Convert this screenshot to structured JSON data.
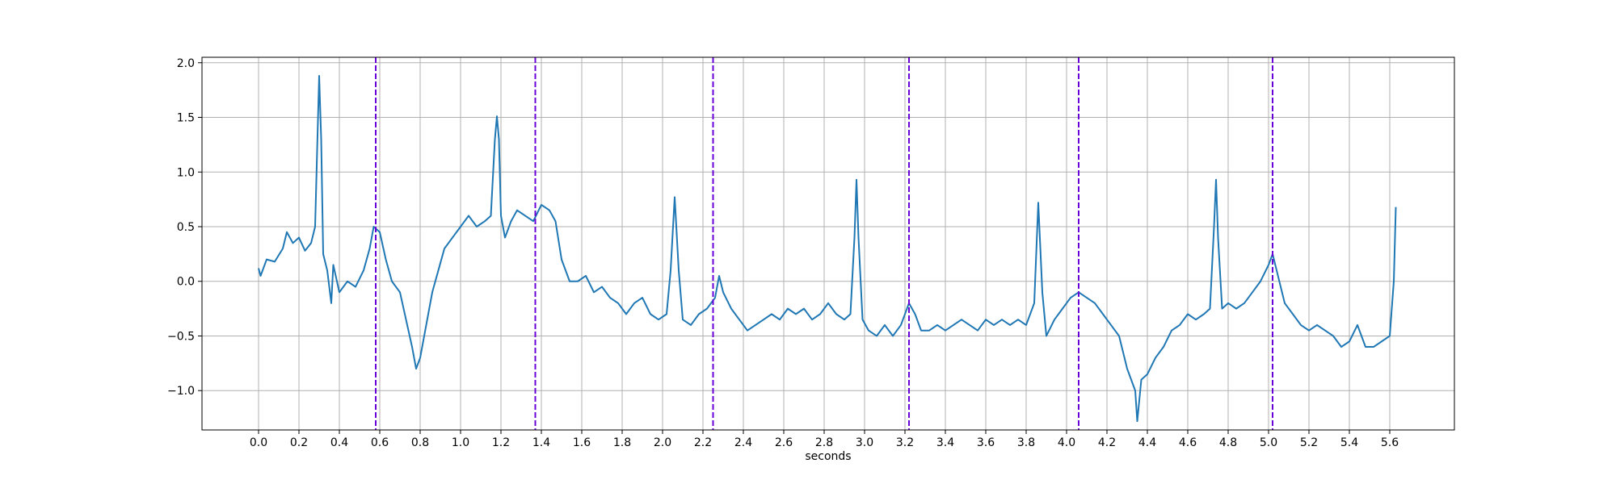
{
  "chart_data": {
    "type": "line",
    "xlabel": "seconds",
    "xlim": [
      -0.28,
      5.92
    ],
    "ylim": [
      -1.36,
      2.05
    ],
    "xticks": [
      {
        "value": 0,
        "label": "0.0"
      },
      0.2,
      0.4,
      0.6,
      0.8,
      {
        "value": 1,
        "label": "1.0"
      },
      1.2,
      1.4,
      1.6,
      1.8,
      {
        "value": 2,
        "label": "2.0"
      },
      2.2,
      2.4,
      2.6,
      2.8,
      {
        "value": 3,
        "label": "3.0"
      },
      3.2,
      3.4,
      3.6,
      3.8,
      {
        "value": 4,
        "label": "4.0"
      },
      4.2,
      4.4,
      4.6,
      4.8,
      {
        "value": 5,
        "label": "5.0"
      },
      5.2,
      5.4,
      5.6
    ],
    "yticks": [
      {
        "value": -1,
        "label": "−1.0"
      },
      {
        "value": -0.5,
        "label": "−0.5"
      },
      {
        "value": 0,
        "label": "0.0"
      },
      0.5,
      {
        "value": 1,
        "label": "1.0"
      },
      1.5,
      {
        "value": 2,
        "label": "2.0"
      }
    ],
    "grid": true,
    "vlines": [
      0.58,
      1.37,
      2.25,
      3.22,
      4.06,
      5.02
    ],
    "vline_color": "#6a00d8",
    "series": [
      {
        "color": "#1f77b4",
        "x": [
          0.0,
          0.01,
          0.04,
          0.08,
          0.12,
          0.14,
          0.17,
          0.2,
          0.23,
          0.26,
          0.28,
          0.29,
          0.3,
          0.31,
          0.32,
          0.34,
          0.36,
          0.37,
          0.4,
          0.44,
          0.48,
          0.52,
          0.55,
          0.57,
          0.6,
          0.63,
          0.66,
          0.7,
          0.73,
          0.76,
          0.78,
          0.8,
          0.83,
          0.86,
          0.89,
          0.92,
          0.96,
          1.0,
          1.04,
          1.08,
          1.12,
          1.15,
          1.17,
          1.18,
          1.19,
          1.2,
          1.22,
          1.25,
          1.28,
          1.32,
          1.36,
          1.4,
          1.44,
          1.47,
          1.5,
          1.54,
          1.58,
          1.62,
          1.66,
          1.7,
          1.74,
          1.78,
          1.82,
          1.86,
          1.9,
          1.94,
          1.98,
          2.02,
          2.04,
          2.06,
          2.08,
          2.1,
          2.14,
          2.18,
          2.22,
          2.24,
          2.26,
          2.28,
          2.3,
          2.34,
          2.38,
          2.42,
          2.46,
          2.5,
          2.54,
          2.58,
          2.62,
          2.66,
          2.7,
          2.74,
          2.78,
          2.82,
          2.86,
          2.9,
          2.93,
          2.95,
          2.96,
          2.97,
          2.99,
          3.02,
          3.06,
          3.1,
          3.14,
          3.18,
          3.22,
          3.25,
          3.28,
          3.32,
          3.36,
          3.4,
          3.44,
          3.48,
          3.52,
          3.56,
          3.6,
          3.64,
          3.68,
          3.72,
          3.76,
          3.8,
          3.84,
          3.86,
          3.88,
          3.9,
          3.94,
          3.98,
          4.02,
          4.06,
          4.1,
          4.14,
          4.18,
          4.22,
          4.26,
          4.3,
          4.34,
          4.35,
          4.37,
          4.4,
          4.44,
          4.48,
          4.52,
          4.56,
          4.6,
          4.64,
          4.68,
          4.71,
          4.73,
          4.74,
          4.75,
          4.77,
          4.8,
          4.84,
          4.88,
          4.92,
          4.96,
          5.0,
          5.02,
          5.04,
          5.08,
          5.12,
          5.16,
          5.2,
          5.24,
          5.28,
          5.32,
          5.36,
          5.4,
          5.44,
          5.48,
          5.52,
          5.56,
          5.6,
          5.62,
          5.63
        ],
        "values": [
          0.12,
          0.05,
          0.2,
          0.18,
          0.3,
          0.45,
          0.35,
          0.4,
          0.28,
          0.35,
          0.5,
          1.2,
          1.88,
          1.3,
          0.25,
          0.1,
          -0.2,
          0.15,
          -0.1,
          0.0,
          -0.05,
          0.1,
          0.3,
          0.5,
          0.45,
          0.2,
          0.0,
          -0.1,
          -0.35,
          -0.6,
          -0.8,
          -0.7,
          -0.4,
          -0.1,
          0.1,
          0.3,
          0.4,
          0.5,
          0.6,
          0.5,
          0.55,
          0.6,
          1.3,
          1.51,
          1.3,
          0.6,
          0.4,
          0.55,
          0.65,
          0.6,
          0.55,
          0.7,
          0.65,
          0.55,
          0.2,
          0.0,
          0.0,
          0.05,
          -0.1,
          -0.05,
          -0.15,
          -0.2,
          -0.3,
          -0.2,
          -0.15,
          -0.3,
          -0.35,
          -0.3,
          0.1,
          0.77,
          0.1,
          -0.35,
          -0.4,
          -0.3,
          -0.25,
          -0.2,
          -0.15,
          0.05,
          -0.1,
          -0.25,
          -0.35,
          -0.45,
          -0.4,
          -0.35,
          -0.3,
          -0.35,
          -0.25,
          -0.3,
          -0.25,
          -0.35,
          -0.3,
          -0.2,
          -0.3,
          -0.35,
          -0.3,
          0.4,
          0.93,
          0.4,
          -0.35,
          -0.45,
          -0.5,
          -0.4,
          -0.5,
          -0.4,
          -0.2,
          -0.3,
          -0.45,
          -0.45,
          -0.4,
          -0.45,
          -0.4,
          -0.35,
          -0.4,
          -0.45,
          -0.35,
          -0.4,
          -0.35,
          -0.4,
          -0.35,
          -0.4,
          -0.2,
          0.72,
          -0.1,
          -0.5,
          -0.35,
          -0.25,
          -0.15,
          -0.1,
          -0.15,
          -0.2,
          -0.3,
          -0.4,
          -0.5,
          -0.8,
          -1.0,
          -1.28,
          -0.9,
          -0.85,
          -0.7,
          -0.6,
          -0.45,
          -0.4,
          -0.3,
          -0.35,
          -0.3,
          -0.25,
          0.5,
          0.93,
          0.4,
          -0.25,
          -0.2,
          -0.25,
          -0.2,
          -0.1,
          0.0,
          0.15,
          0.25,
          0.1,
          -0.2,
          -0.3,
          -0.4,
          -0.45,
          -0.4,
          -0.45,
          -0.5,
          -0.6,
          -0.55,
          -0.4,
          -0.6,
          -0.6,
          -0.55,
          -0.5,
          0.0,
          0.68
        ]
      }
    ]
  }
}
